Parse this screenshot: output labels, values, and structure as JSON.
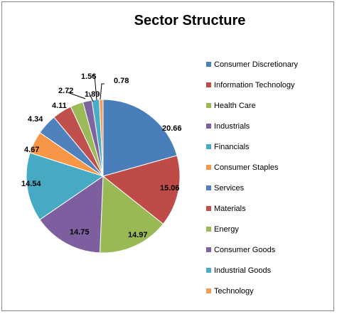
{
  "chart_data": {
    "type": "pie",
    "title": "Sector Structure",
    "legend_position": "right",
    "slices": [
      {
        "label": "Consumer Discretionary",
        "value": 20.66,
        "color": "#4a7ebb"
      },
      {
        "label": "Information Technology",
        "value": 15.06,
        "color": "#be4b48"
      },
      {
        "label": "Health Care",
        "value": 14.97,
        "color": "#98b954"
      },
      {
        "label": "Industrials",
        "value": 14.75,
        "color": "#7d5fa0"
      },
      {
        "label": "Financials",
        "value": 14.54,
        "color": "#46aac5"
      },
      {
        "label": "Consumer Staples",
        "value": 4.67,
        "color": "#f79646"
      },
      {
        "label": "Services",
        "value": 4.34,
        "color": "#4f81bd"
      },
      {
        "label": "Materials",
        "value": 4.11,
        "color": "#c0504d"
      },
      {
        "label": "Energy",
        "value": 2.72,
        "color": "#9bbb59"
      },
      {
        "label": "Consumer Goods",
        "value": 1.89,
        "color": "#8064a2"
      },
      {
        "label": "Industrial Goods",
        "value": 1.56,
        "color": "#4bacc6"
      },
      {
        "label": "Technology",
        "value": 0.78,
        "color": "#f59d56"
      }
    ]
  }
}
